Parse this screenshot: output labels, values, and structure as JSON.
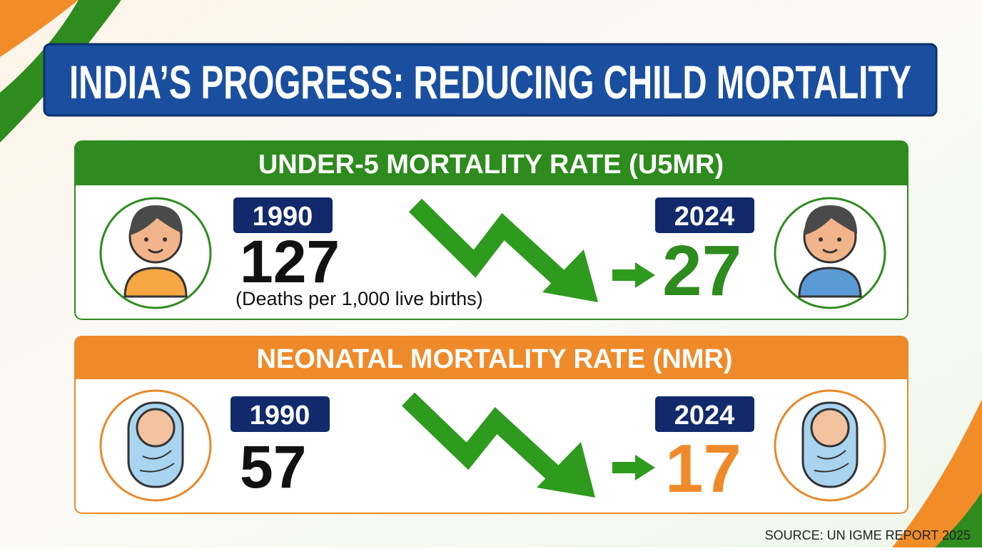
{
  "title": "INDIA’S PROGRESS: REDUCING CHILD MORTALITY",
  "sections": [
    {
      "title": "UNDER-5 MORTALITY RATE (U5MR)",
      "start_year": "1990",
      "start_value": "127",
      "note": "(Deaths per 1,000 live births)",
      "end_year": "2024",
      "end_value": "27"
    },
    {
      "title": "NEONATAL MORTALITY RATE (NMR)",
      "start_year": "1990",
      "start_value": "57",
      "end_year": "2024",
      "end_value": "17"
    }
  ],
  "source": "SOURCE: UN IGME REPORT 2025"
}
